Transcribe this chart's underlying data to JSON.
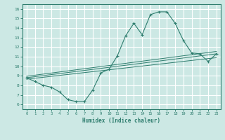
{
  "xlabel": "Humidex (Indice chaleur)",
  "xlim": [
    -0.5,
    23.5
  ],
  "ylim": [
    5.5,
    16.5
  ],
  "xticks": [
    0,
    1,
    2,
    3,
    4,
    5,
    6,
    7,
    8,
    9,
    10,
    11,
    12,
    13,
    14,
    15,
    16,
    17,
    18,
    19,
    20,
    21,
    22,
    23
  ],
  "yticks": [
    6,
    7,
    8,
    9,
    10,
    11,
    12,
    13,
    14,
    15,
    16
  ],
  "bg_color": "#cce8e4",
  "grid_color": "#ffffff",
  "line_color": "#2e7d6e",
  "curve1_x": [
    0,
    1,
    2,
    3,
    4,
    5,
    6,
    7,
    8,
    9,
    10,
    11,
    12,
    13,
    14,
    15,
    16,
    17,
    18,
    19,
    20,
    21,
    22,
    23
  ],
  "curve1_y": [
    8.8,
    8.4,
    8.0,
    7.8,
    7.3,
    6.5,
    6.3,
    6.3,
    7.5,
    9.3,
    9.7,
    11.1,
    13.2,
    14.5,
    13.3,
    15.4,
    15.7,
    15.7,
    14.5,
    12.7,
    11.4,
    11.3,
    10.5,
    11.3
  ],
  "line2_x": [
    0,
    23
  ],
  "line2_y": [
    8.8,
    11.3
  ],
  "line3_x": [
    0,
    23
  ],
  "line3_y": [
    8.65,
    10.9
  ],
  "line4_x": [
    0,
    23
  ],
  "line4_y": [
    8.95,
    11.55
  ]
}
